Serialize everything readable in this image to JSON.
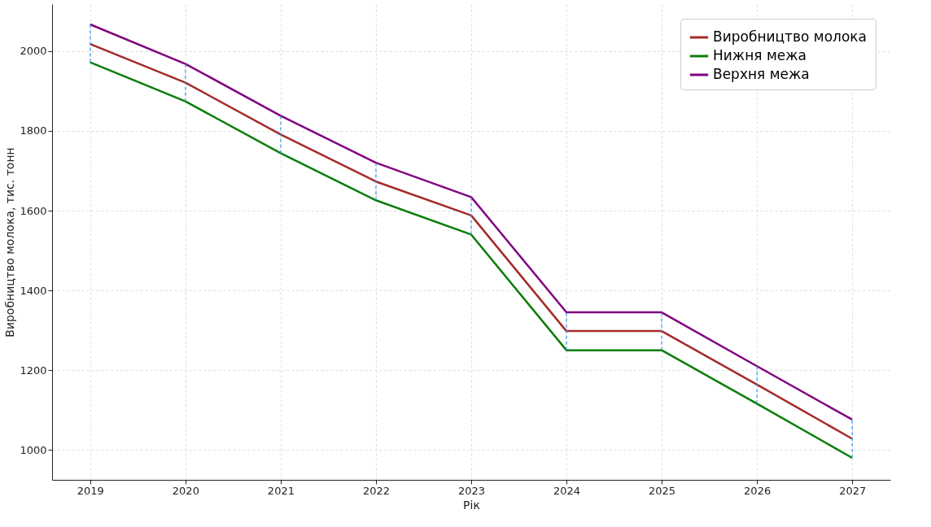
{
  "chart_data": {
    "type": "line",
    "xlabel": "Рік",
    "ylabel": "Виробництво молока, тис. тонн",
    "x": [
      2019,
      2020,
      2021,
      2022,
      2023,
      2024,
      2025,
      2026,
      2027
    ],
    "series": [
      {
        "name": "Виробництво молока",
        "color": "#a52a2a",
        "values": [
          2018,
          1921,
          1791,
          1673,
          1588,
          1298,
          1298,
          1164,
          1028
        ],
        "errors": [
          [
            1972,
            2067
          ],
          [
            1874,
            1968
          ],
          [
            1744,
            1838
          ],
          [
            1626,
            1720
          ],
          [
            1540,
            1634
          ],
          [
            1250,
            1345
          ],
          [
            1250,
            1345
          ],
          [
            1116,
            1210
          ],
          [
            980,
            1076
          ]
        ]
      },
      {
        "name": "Нижня межа",
        "color": "#0a7d0a",
        "values": [
          1972,
          1874,
          1744,
          1626,
          1540,
          1250,
          1250,
          1116,
          980
        ]
      },
      {
        "name": "Верхня межа",
        "color": "#800080",
        "values": [
          2067,
          1968,
          1838,
          1720,
          1634,
          1345,
          1345,
          1210,
          1076
        ]
      }
    ],
    "xlim": [
      2018.6,
      2027.4
    ],
    "ylim": [
      925,
      2118
    ],
    "xticks": [
      2019,
      2020,
      2021,
      2022,
      2023,
      2024,
      2025,
      2026,
      2027
    ],
    "yticks": [
      1000,
      1200,
      1400,
      1600,
      1800,
      2000
    ],
    "grid": true,
    "legend": "top right",
    "line_style": "solid",
    "marker": "none"
  }
}
